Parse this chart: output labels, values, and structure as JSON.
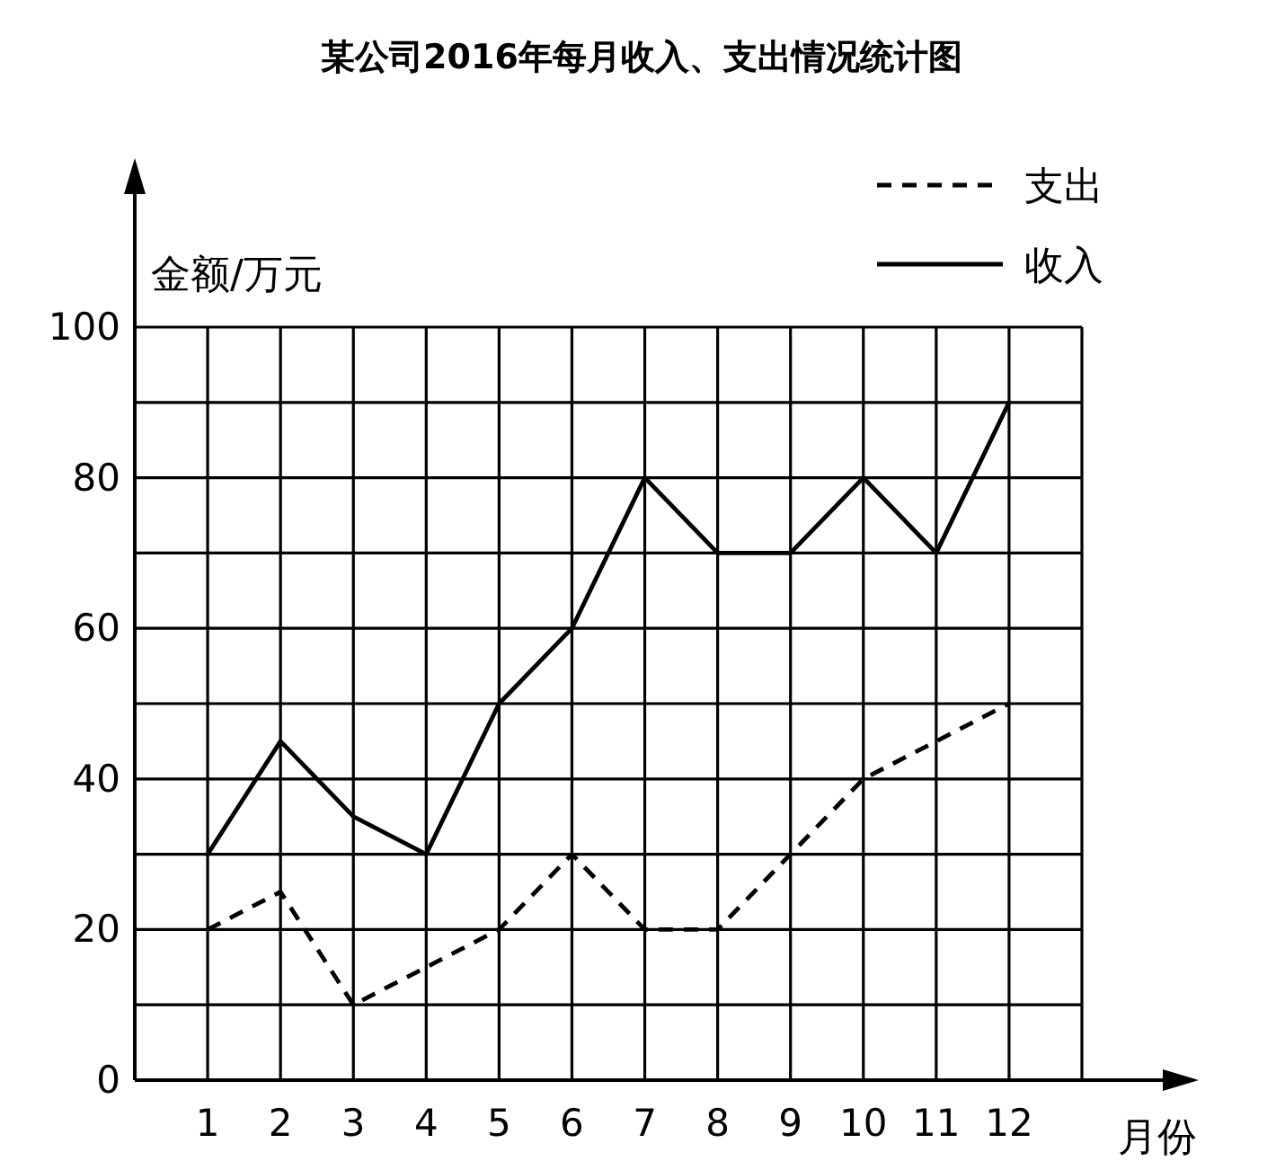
{
  "chart_data": {
    "type": "line",
    "title": "某公司2016年每月收入、支出情况统计图",
    "xlabel": "月份",
    "ylabel": "金额/万元",
    "x": [
      1,
      2,
      3,
      4,
      5,
      6,
      7,
      8,
      9,
      10,
      11,
      12
    ],
    "series": [
      {
        "name": "支出",
        "color": "#000000",
        "line_style": "dashed",
        "values": [
          20,
          25,
          10,
          15,
          20,
          30,
          20,
          20,
          30,
          40,
          45,
          50
        ]
      },
      {
        "name": "收入",
        "color": "#000000",
        "line_style": "solid",
        "values": [
          30,
          45,
          35,
          30,
          50,
          60,
          80,
          70,
          70,
          80,
          70,
          90
        ]
      }
    ],
    "xlim": [
      0,
      13
    ],
    "ylim": [
      0,
      100
    ],
    "xticks": [
      1,
      2,
      3,
      4,
      5,
      6,
      7,
      8,
      9,
      10,
      11,
      12,
      {
        "value": 13,
        "label": null
      }
    ],
    "yticks": [
      0,
      {
        "value": 10,
        "label": null
      },
      20,
      {
        "value": 30,
        "label": null
      },
      40,
      {
        "value": 50,
        "label": null
      },
      60,
      {
        "value": 70,
        "label": null
      },
      80,
      {
        "value": 90,
        "label": null
      },
      100
    ],
    "grid": true,
    "legend": "top right",
    "marker": "none"
  }
}
